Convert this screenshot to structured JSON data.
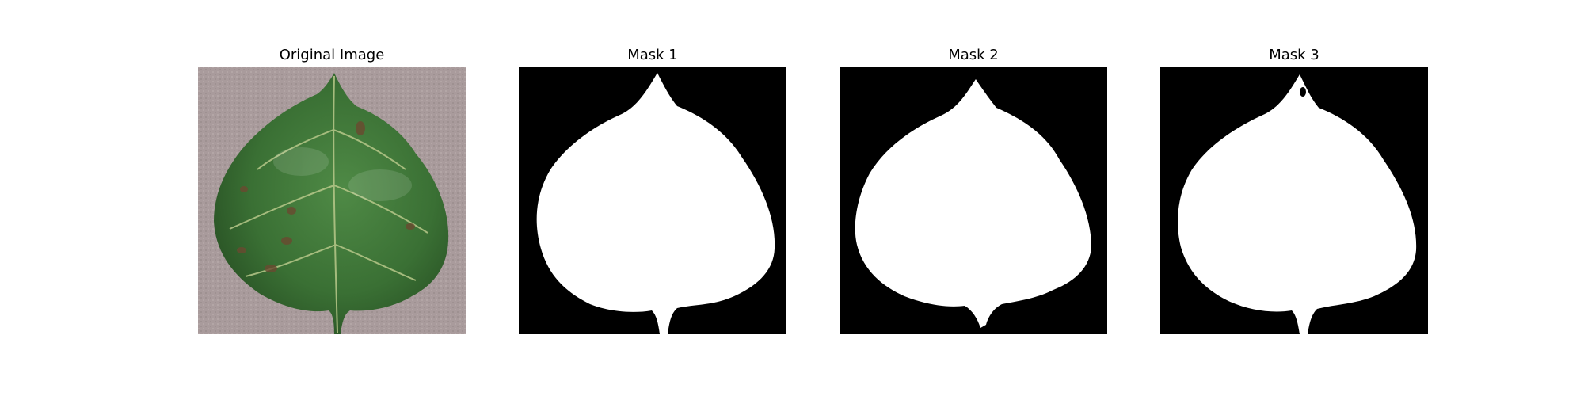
{
  "panels": [
    {
      "title": "Original Image"
    },
    {
      "title": "Mask 1"
    },
    {
      "title": "Mask 2"
    },
    {
      "title": "Mask 3"
    }
  ],
  "colors": {
    "background": "#a89a9a",
    "leaf_dark": "#2f5f2c",
    "leaf_mid": "#3f7a38",
    "leaf_light": "#6f9f60",
    "vein": "#b9c98a",
    "mask_background": "#000000",
    "mask_foreground": "#ffffff"
  }
}
